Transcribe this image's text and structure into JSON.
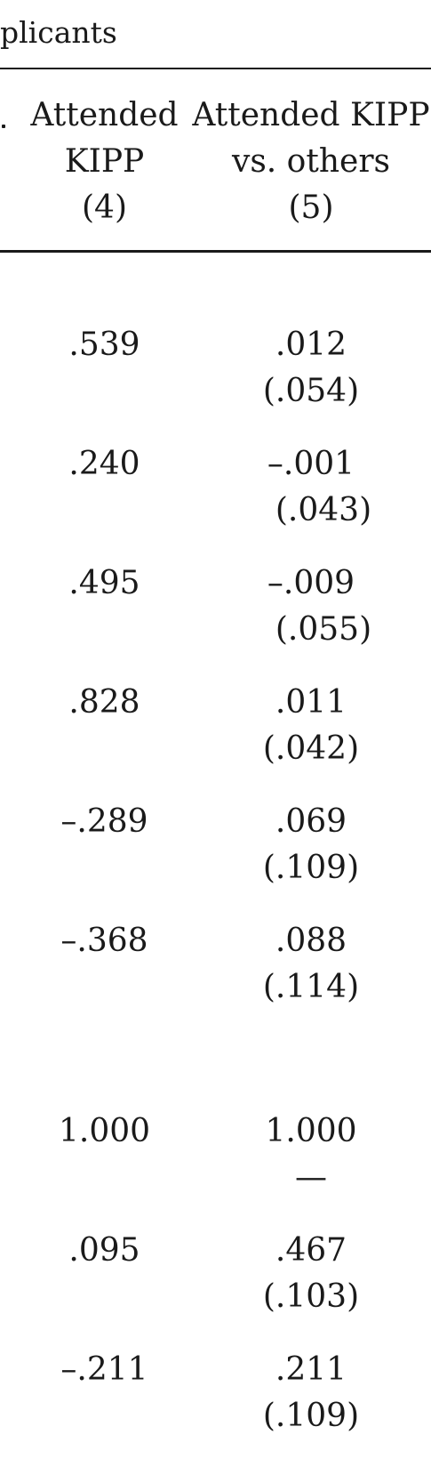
{
  "title_fragment": "plicants",
  "columns": [
    {
      "lines": [
        "Attended",
        "KIPP",
        "(4)"
      ]
    },
    {
      "lines": [
        "Attended KIPP",
        "vs. others",
        "(5)"
      ]
    }
  ],
  "rows": [
    {
      "col4": ".539",
      "col5": ".012",
      "col5_se": "(.054)"
    },
    {
      "col4": ".240",
      "col5": "–.001",
      "col5_se": "(.043)"
    },
    {
      "col4": ".495",
      "col5": "–.009",
      "col5_se": "(.055)"
    },
    {
      "col4": ".828",
      "col5": ".011",
      "col5_se": "(.042)"
    },
    {
      "col4": "–.289",
      "col5": ".069",
      "col5_se": "(.109)"
    },
    {
      "col4": "–.368",
      "col5": ".088",
      "col5_se": "(.114)"
    },
    {
      "col4": "1.000",
      "col5": "1.000",
      "col5_se": "—"
    },
    {
      "col4": ".095",
      "col5": ".467",
      "col5_se": "(.103)"
    },
    {
      "col4": "–.211",
      "col5": ".211",
      "col5_se": "(.109)"
    }
  ]
}
